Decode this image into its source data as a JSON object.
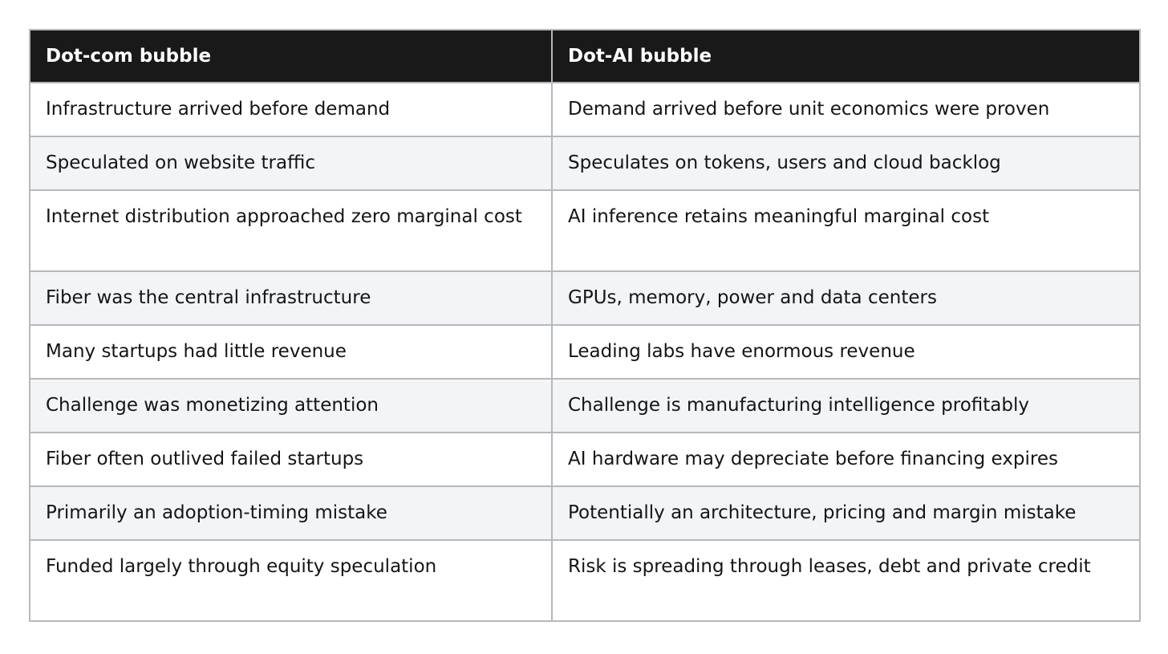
{
  "table": {
    "headers": [
      "Dot-com bubble",
      "Dot-AI bubble"
    ],
    "rows": [
      [
        "Infrastructure arrived before demand",
        "Demand arrived before unit economics were proven"
      ],
      [
        "Speculated on website traffic",
        "Speculates on tokens, users and cloud backlog"
      ],
      [
        "Internet distribution approached zero marginal cost",
        "AI inference retains meaningful marginal cost"
      ],
      [
        "Fiber was the central infrastructure",
        "GPUs, memory, power and data centers"
      ],
      [
        "Many startups had little revenue",
        "Leading labs have enormous revenue"
      ],
      [
        "Challenge was monetizing attention",
        "Challenge is manufacturing intelligence profitably"
      ],
      [
        "Fiber often outlived failed startups",
        "AI hardware may depreciate before financing expires"
      ],
      [
        "Primarily an adoption-timing mistake",
        "Potentially an architecture, pricing and margin mistake"
      ],
      [
        "Funded largely through equity speculation",
        "Risk is spreading through leases, debt and private credit"
      ]
    ]
  }
}
